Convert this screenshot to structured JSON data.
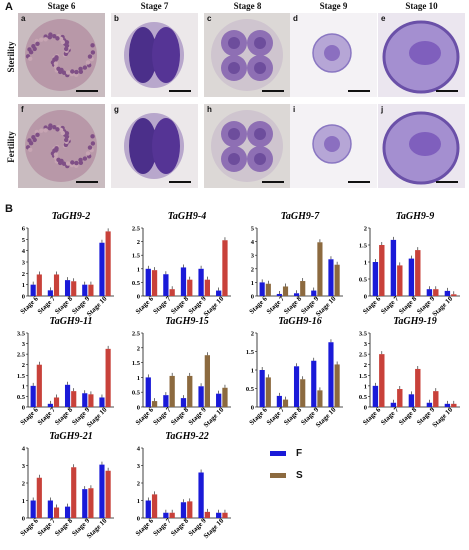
{
  "panels": {
    "a_label": "A",
    "b_label": "B"
  },
  "stages_header": [
    "Stage 6",
    "Stage 7",
    "Stage 8",
    "Stage 9",
    "Stage 10"
  ],
  "row_labels": [
    "Sterility",
    "Fertility"
  ],
  "micrographs": {
    "sterility": [
      {
        "letter": "a",
        "type": "pmc"
      },
      {
        "letter": "b",
        "type": "dyad"
      },
      {
        "letter": "c",
        "type": "tetrad"
      },
      {
        "letter": "d",
        "type": "microspore"
      },
      {
        "letter": "e",
        "type": "pollen"
      }
    ],
    "fertility": [
      {
        "letter": "f",
        "type": "pmc"
      },
      {
        "letter": "g",
        "type": "dyad"
      },
      {
        "letter": "h",
        "type": "tetrad"
      },
      {
        "letter": "i",
        "type": "microspore"
      },
      {
        "letter": "j",
        "type": "pollen"
      }
    ]
  },
  "colors": {
    "F": "#1a1ad8",
    "S": "#8c6a3f",
    "S_alt": "#c8413a",
    "stain": "#8a6fb6",
    "photo_bg": "#e9e4e8"
  },
  "legend": [
    {
      "key": "F",
      "label": "F",
      "color": "#1a1ad8"
    },
    {
      "key": "S",
      "label": "S",
      "color": "#8c6a3f"
    }
  ],
  "chart_data": [
    {
      "type": "bar",
      "title": "TaGH9-2",
      "categories": [
        "Stage 6",
        "Stage 7",
        "Stage 8",
        "Stage 9",
        "Stage 10"
      ],
      "ylim": [
        0,
        6
      ],
      "yticks": [
        "0",
        "1",
        "2",
        "3",
        "4",
        "5",
        "6"
      ],
      "s_color": "#c8413a",
      "series": [
        {
          "name": "F",
          "values": [
            1.0,
            0.5,
            1.4,
            1.0,
            4.7
          ]
        },
        {
          "name": "S",
          "values": [
            1.9,
            1.9,
            1.3,
            1.0,
            5.7
          ]
        }
      ]
    },
    {
      "type": "bar",
      "title": "TaGH9-4",
      "categories": [
        "Stage 6",
        "Stage 7",
        "Stage 8",
        "Stage 9",
        "Stage 10"
      ],
      "ylim": [
        0,
        2.5
      ],
      "yticks": [
        "0",
        "0.5",
        "1",
        "1.5",
        "2",
        "2.5"
      ],
      "s_color": "#c8413a",
      "series": [
        {
          "name": "F",
          "values": [
            1.0,
            0.8,
            1.05,
            1.0,
            0.2
          ]
        },
        {
          "name": "S",
          "values": [
            0.95,
            0.25,
            0.6,
            0.6,
            2.05
          ]
        }
      ]
    },
    {
      "type": "bar",
      "title": "TaGH9-7",
      "categories": [
        "Stage 6",
        "Stage 7",
        "Stage 8",
        "Stage 9",
        "Stage 10"
      ],
      "ylim": [
        0,
        5
      ],
      "yticks": [
        "0",
        "1",
        "2",
        "3",
        "4",
        "5"
      ],
      "s_color": "#8c6a3f",
      "series": [
        {
          "name": "F",
          "values": [
            1.0,
            0.15,
            0.2,
            0.4,
            2.7
          ]
        },
        {
          "name": "S",
          "values": [
            0.9,
            0.7,
            1.1,
            3.95,
            2.3
          ]
        }
      ]
    },
    {
      "type": "bar",
      "title": "TaGH9-9",
      "categories": [
        "Stage 6",
        "Stage 7",
        "Stage 8",
        "Stage 9",
        "Stage 10"
      ],
      "ylim": [
        0,
        2
      ],
      "yticks": [
        "0",
        "0.5",
        "1",
        "1.5",
        "2"
      ],
      "s_color": "#c8413a",
      "series": [
        {
          "name": "F",
          "values": [
            1.0,
            1.65,
            1.1,
            0.2,
            0.15
          ]
        },
        {
          "name": "S",
          "values": [
            1.5,
            0.9,
            1.35,
            0.2,
            0.05
          ]
        }
      ]
    },
    {
      "type": "bar",
      "title": "TaGH9-11",
      "categories": [
        "Stage 6",
        "Stage 7",
        "Stage 8",
        "Stage 9",
        "Stage 10"
      ],
      "ylim": [
        0,
        3.5
      ],
      "yticks": [
        "0",
        "0.5",
        "1",
        "1.5",
        "2",
        "2.5",
        "3",
        "3.5"
      ],
      "s_color": "#c8413a",
      "series": [
        {
          "name": "F",
          "values": [
            1.0,
            0.15,
            1.05,
            0.65,
            0.45
          ]
        },
        {
          "name": "S",
          "values": [
            2.0,
            0.45,
            0.75,
            0.6,
            2.75
          ]
        }
      ]
    },
    {
      "type": "bar",
      "title": "TaGH9-15",
      "categories": [
        "Stage 6",
        "Stage 7",
        "Stage 8",
        "Stage 9",
        "Stage 10"
      ],
      "ylim": [
        0,
        2.5
      ],
      "yticks": [
        "0",
        "0.5",
        "1",
        "1.5",
        "2",
        "2.5"
      ],
      "s_color": "#8c6a3f",
      "series": [
        {
          "name": "F",
          "values": [
            1.0,
            0.4,
            0.3,
            0.7,
            0.45
          ]
        },
        {
          "name": "S",
          "values": [
            0.2,
            1.05,
            1.05,
            1.75,
            0.65
          ]
        }
      ]
    },
    {
      "type": "bar",
      "title": "TaGH9-16",
      "categories": [
        "Stage 6",
        "Stage 7",
        "Stage 8",
        "Stage 9",
        "Stage 10"
      ],
      "ylim": [
        0,
        2
      ],
      "yticks": [
        "0",
        "0.5",
        "1",
        "1.5",
        "2"
      ],
      "s_color": "#8c6a3f",
      "series": [
        {
          "name": "F",
          "values": [
            1.0,
            0.3,
            1.1,
            1.25,
            1.75
          ]
        },
        {
          "name": "S",
          "values": [
            0.8,
            0.2,
            0.75,
            0.45,
            1.15
          ]
        }
      ]
    },
    {
      "type": "bar",
      "title": "TaGH9-19",
      "categories": [
        "Stage 6",
        "Stage 7",
        "Stage 8",
        "Stage 9",
        "Stage 10"
      ],
      "ylim": [
        0,
        3.5
      ],
      "yticks": [
        "0",
        "0.5",
        "1",
        "1.5",
        "2",
        "2.5",
        "3",
        "3.5"
      ],
      "s_color": "#c8413a",
      "series": [
        {
          "name": "F",
          "values": [
            1.0,
            0.2,
            0.6,
            0.2,
            0.15
          ]
        },
        {
          "name": "S",
          "values": [
            2.5,
            0.85,
            1.8,
            0.75,
            0.15
          ]
        }
      ]
    },
    {
      "type": "bar",
      "title": "TaGH9-21",
      "categories": [
        "Stage 6",
        "Stage 7",
        "Stage 8",
        "Stage 9",
        "Stage 10"
      ],
      "ylim": [
        0,
        4
      ],
      "yticks": [
        "0",
        "1",
        "2",
        "3",
        "4"
      ],
      "s_color": "#c8413a",
      "series": [
        {
          "name": "F",
          "values": [
            1.0,
            1.0,
            0.65,
            1.65,
            3.05
          ]
        },
        {
          "name": "S",
          "values": [
            2.3,
            0.6,
            2.9,
            1.7,
            2.7
          ]
        }
      ]
    },
    {
      "type": "bar",
      "title": "TaGH9-22",
      "categories": [
        "Stage 6",
        "Stage 7",
        "Stage 8",
        "Stage 9",
        "Stage 10"
      ],
      "ylim": [
        0,
        4
      ],
      "yticks": [
        "0",
        "1",
        "2",
        "3",
        "4"
      ],
      "s_color": "#c8413a",
      "series": [
        {
          "name": "F",
          "values": [
            1.0,
            0.3,
            0.9,
            2.6,
            0.3
          ]
        },
        {
          "name": "S",
          "values": [
            1.35,
            0.3,
            0.95,
            0.35,
            0.3
          ]
        }
      ]
    }
  ]
}
